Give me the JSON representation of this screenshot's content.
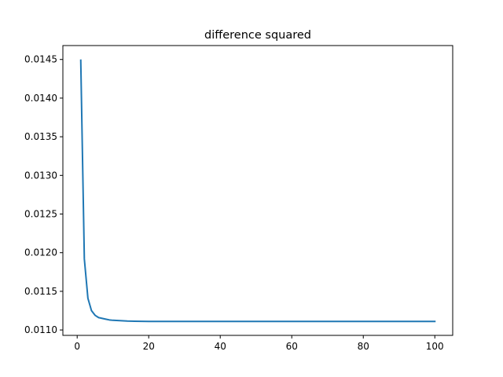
{
  "chart_data": {
    "type": "line",
    "title": "difference squared",
    "xlabel": "",
    "ylabel": "",
    "xlim": [
      -4.0,
      105.0
    ],
    "ylim": [
      0.01093,
      0.01468
    ],
    "x_ticks": [
      0,
      20,
      40,
      60,
      80,
      100
    ],
    "x_tick_labels": [
      "0",
      "20",
      "40",
      "60",
      "80",
      "100"
    ],
    "y_ticks": [
      0.011,
      0.0115,
      0.012,
      0.0125,
      0.013,
      0.0135,
      0.014,
      0.0145
    ],
    "y_tick_labels": [
      "0.0110",
      "0.0115",
      "0.0120",
      "0.0125",
      "0.0130",
      "0.0135",
      "0.0140",
      "0.0145"
    ],
    "grid": false,
    "line_color": "#1f77b4",
    "series": [
      {
        "x": [
          1,
          2,
          3,
          4,
          5,
          6,
          7,
          8,
          9,
          10,
          12,
          14,
          16,
          18,
          20,
          25,
          30,
          40,
          50,
          60,
          70,
          80,
          90,
          100
        ],
        "values": [
          0.01449,
          0.01192,
          0.01141,
          0.01125,
          0.01119,
          0.01116,
          0.01115,
          0.01114,
          0.01113,
          0.011125,
          0.01112,
          0.011115,
          0.011113,
          0.011112,
          0.011111,
          0.01111,
          0.01111,
          0.01111,
          0.01111,
          0.01111,
          0.01111,
          0.01111,
          0.01111,
          0.01111
        ]
      }
    ]
  }
}
